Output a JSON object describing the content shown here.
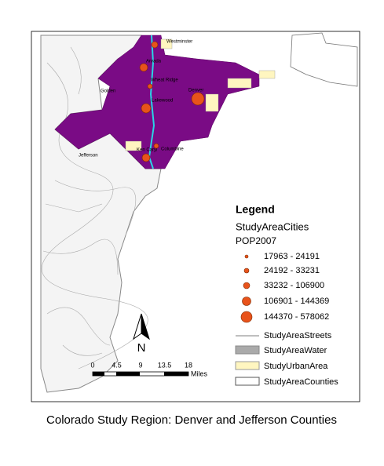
{
  "map": {
    "cities": [
      {
        "label": "Westminster"
      },
      {
        "label": "Arvada"
      },
      {
        "label": "Wheat Ridge"
      },
      {
        "label": "Golden"
      },
      {
        "label": "Denver"
      },
      {
        "label": "Lakewood"
      },
      {
        "label": "Ken Caryl"
      },
      {
        "label": "Columbine"
      },
      {
        "label": "Jefferson"
      }
    ],
    "legend": {
      "title": "Legend",
      "layer": "StudyAreaCities",
      "field": "POP2007",
      "classes": [
        "17963 - 24191",
        "24192 - 33231",
        "33232 - 106900",
        "106901 - 144369",
        "144370 - 578062"
      ],
      "streets": "StudyAreaStreets",
      "water": "StudyAreaWater",
      "urban": "StudyUrbanArea",
      "counties": "StudyAreaCounties"
    },
    "north": "N",
    "scale": {
      "ticks": [
        "0",
        "4.5",
        "9",
        "13.5",
        "18"
      ],
      "unit": "Miles"
    }
  },
  "caption": "Colorado Study Region: Denver and Jefferson Counties"
}
